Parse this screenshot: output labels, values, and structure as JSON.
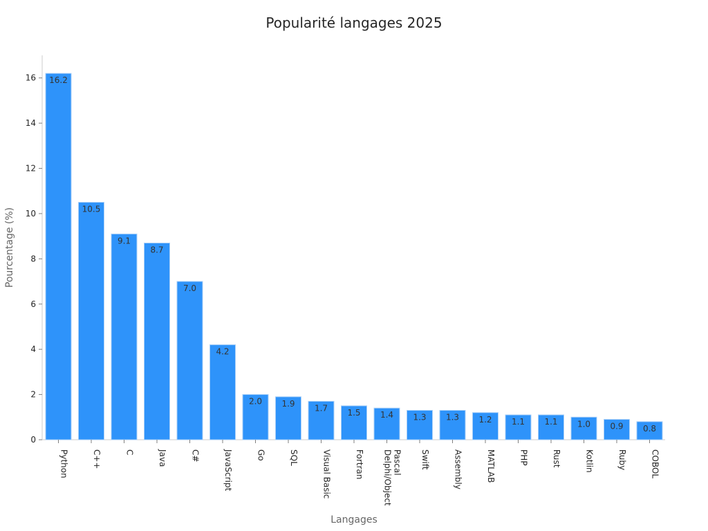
{
  "chart_data": {
    "type": "bar",
    "title": "Popularité langages 2025",
    "xlabel": "Langages",
    "ylabel": "Pourcentage (%)",
    "categories": [
      "Python",
      "C++",
      "C",
      "Java",
      "C#",
      "JavaScript",
      "Go",
      "SQL",
      "Visual Basic",
      "Fortran",
      "Delphi/Object Pascal",
      "Swift",
      "Assembly",
      "MATLAB",
      "PHP",
      "Rust",
      "Kotlin",
      "Ruby",
      "COBOL"
    ],
    "category_display_lines": [
      [
        "Python"
      ],
      [
        "C++"
      ],
      [
        "C"
      ],
      [
        "Java"
      ],
      [
        "C#"
      ],
      [
        "JavaScript"
      ],
      [
        "Go"
      ],
      [
        "SQL"
      ],
      [
        "Visual Basic"
      ],
      [
        "Fortran"
      ],
      [
        "Delphi/Object",
        "Pascal"
      ],
      [
        "Swift"
      ],
      [
        "Assembly"
      ],
      [
        "MATLAB"
      ],
      [
        "PHP"
      ],
      [
        "Rust"
      ],
      [
        "Kotlin"
      ],
      [
        "Ruby"
      ],
      [
        "COBOL"
      ]
    ],
    "values": [
      16.2,
      10.5,
      9.1,
      8.7,
      7.0,
      4.2,
      2.0,
      1.9,
      1.7,
      1.5,
      1.4,
      1.3,
      1.3,
      1.2,
      1.1,
      1.1,
      1.0,
      0.9,
      0.8
    ],
    "value_labels": [
      "16.2",
      "10.5",
      "9.1",
      "8.7",
      "7.0",
      "4.2",
      "2.0",
      "1.9",
      "1.7",
      "1.5",
      "1.4",
      "1.3",
      "1.3",
      "1.2",
      "1.1",
      "1.1",
      "1.0",
      "0.9",
      "0.8"
    ],
    "yticks": [
      "0",
      "2",
      "4",
      "6",
      "8",
      "10",
      "12",
      "14",
      "16"
    ],
    "ylim": [
      0,
      17
    ],
    "grid": false,
    "legend": "none",
    "bar_color": "#2e93fa"
  }
}
